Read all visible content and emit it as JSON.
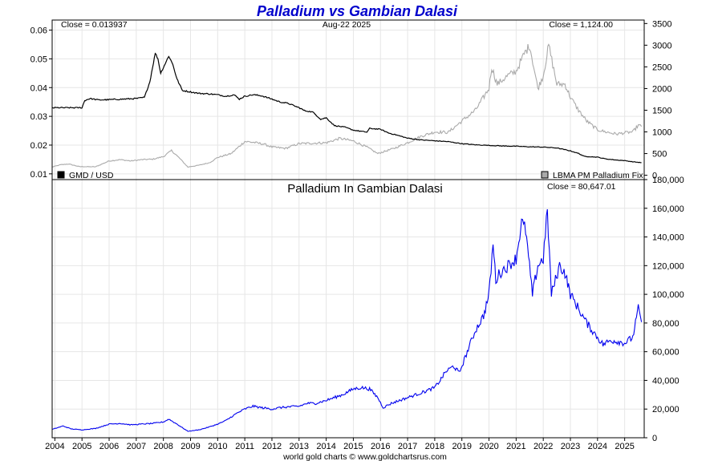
{
  "colors": {
    "title": "#0000cc",
    "gmd_line": "#000000",
    "palladium_line": "#aaaaaa",
    "gmd_palladium_line": "#0000ee",
    "grid": "#e6e6e6"
  },
  "chart_data": [
    {
      "type": "line",
      "title": "Palladium vs Gambian Dalasi",
      "header_left": "Close = 0.013937",
      "header_center": "Aug-22  2025",
      "header_right": "Close = 1,124.00",
      "grid": true,
      "x_ticks": [
        "2004",
        "2005",
        "2006",
        "2007",
        "2008",
        "2009",
        "2010",
        "2011",
        "2012",
        "2013",
        "2014",
        "2015",
        "2016",
        "2017",
        "2018",
        "2019",
        "2020",
        "2021",
        "2022",
        "2023",
        "2024",
        "2025"
      ],
      "xlim": [
        2003.9,
        2025.72
      ],
      "left_axis": {
        "ticks": [
          "0.01",
          "0.02",
          "0.03",
          "0.04",
          "0.05",
          "0.06"
        ],
        "ylim": [
          0.008,
          0.0635
        ]
      },
      "right_axis": {
        "ticks": [
          "0",
          "500",
          "1000",
          "1500",
          "2000",
          "2500",
          "3000",
          "3500"
        ],
        "ylim": [
          -100,
          3580
        ]
      },
      "series": [
        {
          "name": "GMD / USD",
          "axis": "left",
          "legend_position": "bottom-left",
          "x": [
            2003.9,
            2004.5,
            2005.0,
            2005.1,
            2005.3,
            2005.6,
            2006.0,
            2006.5,
            2007.0,
            2007.3,
            2007.5,
            2007.7,
            2007.8,
            2007.9,
            2008.0,
            2008.2,
            2008.35,
            2008.5,
            2008.7,
            2009.0,
            2009.3,
            2009.7,
            2010.0,
            2010.3,
            2010.6,
            2010.8,
            2011.0,
            2011.3,
            2011.6,
            2012.0,
            2012.3,
            2012.6,
            2013.0,
            2013.2,
            2013.5,
            2013.8,
            2014.0,
            2014.3,
            2014.7,
            2015.0,
            2015.5,
            2015.6,
            2016.0,
            2016.3,
            2016.6,
            2017.0,
            2017.5,
            2018.0,
            2018.5,
            2019.0,
            2019.5,
            2020.0,
            2020.5,
            2021.0,
            2021.5,
            2022.0,
            2022.5,
            2022.8,
            2023.0,
            2023.3,
            2023.5,
            2024.0,
            2024.3,
            2024.7,
            2025.0,
            2025.3,
            2025.62
          ],
          "y": [
            0.033,
            0.033,
            0.033,
            0.0355,
            0.0362,
            0.0357,
            0.0358,
            0.036,
            0.0362,
            0.0366,
            0.042,
            0.052,
            0.05,
            0.045,
            0.047,
            0.051,
            0.048,
            0.043,
            0.039,
            0.0385,
            0.038,
            0.0378,
            0.0375,
            0.037,
            0.0375,
            0.036,
            0.037,
            0.0375,
            0.0372,
            0.036,
            0.035,
            0.0345,
            0.033,
            0.032,
            0.0315,
            0.029,
            0.0295,
            0.0268,
            0.0262,
            0.0252,
            0.0245,
            0.0258,
            0.0255,
            0.0242,
            0.0235,
            0.0224,
            0.0218,
            0.0215,
            0.0212,
            0.0205,
            0.0201,
            0.0199,
            0.0197,
            0.0196,
            0.0194,
            0.0193,
            0.019,
            0.0184,
            0.018,
            0.0171,
            0.0161,
            0.0158,
            0.0152,
            0.0148,
            0.0146,
            0.0142,
            0.0139
          ]
        },
        {
          "name": "LBMA PM Palladium Fix",
          "axis": "right",
          "legend_position": "bottom-right",
          "x": [
            2003.9,
            2004.2,
            2004.5,
            2004.9,
            2005.5,
            2006.0,
            2006.4,
            2006.8,
            2007.2,
            2007.6,
            2008.0,
            2008.3,
            2008.6,
            2008.9,
            2009.3,
            2009.7,
            2010.0,
            2010.5,
            2011.0,
            2011.3,
            2011.7,
            2012.0,
            2012.5,
            2013.0,
            2013.5,
            2014.0,
            2014.5,
            2015.0,
            2015.5,
            2015.9,
            2016.5,
            2017.0,
            2017.5,
            2018.0,
            2018.5,
            2019.0,
            2019.5,
            2020.0,
            2020.1,
            2020.3,
            2020.7,
            2021.0,
            2021.3,
            2021.5,
            2021.8,
            2022.0,
            2022.2,
            2022.5,
            2022.8,
            2023.0,
            2023.3,
            2023.6,
            2024.0,
            2024.3,
            2024.7,
            2025.0,
            2025.3,
            2025.5,
            2025.62
          ],
          "y": [
            190,
            240,
            260,
            200,
            195,
            330,
            360,
            330,
            360,
            370,
            430,
            570,
            390,
            190,
            230,
            290,
            410,
            500,
            780,
            760,
            720,
            650,
            620,
            730,
            740,
            750,
            850,
            790,
            650,
            500,
            620,
            750,
            900,
            1000,
            990,
            1250,
            1500,
            2000,
            2500,
            2100,
            2300,
            2400,
            2800,
            3000,
            2000,
            2300,
            3000,
            2100,
            2100,
            1800,
            1500,
            1250,
            1050,
            1000,
            950,
            980,
            1000,
            1150,
            1124
          ]
        },
        {
          "name": "Palladium In Gambian Dalasi",
          "header_right": "Close = 80,647.01",
          "axis": "bottom-right",
          "ticks": [
            "0",
            "20,000",
            "40,000",
            "60,000",
            "80,000",
            "100,000",
            "120,000",
            "140,000",
            "160,000",
            "180,000"
          ],
          "ylim": [
            0,
            180000
          ],
          "x": [
            2003.9,
            2004.3,
            2004.6,
            2005.0,
            2005.5,
            2006.0,
            2006.4,
            2006.8,
            2007.2,
            2007.6,
            2008.0,
            2008.2,
            2008.5,
            2008.7,
            2008.9,
            2009.3,
            2009.6,
            2010.0,
            2010.3,
            2010.7,
            2011.0,
            2011.3,
            2011.6,
            2012.0,
            2012.3,
            2012.6,
            2013.0,
            2013.3,
            2013.6,
            2014.0,
            2014.3,
            2014.6,
            2015.0,
            2015.3,
            2015.6,
            2015.9,
            2016.1,
            2016.4,
            2016.7,
            2017.0,
            2017.3,
            2017.6,
            2018.0,
            2018.2,
            2018.4,
            2018.7,
            2018.9,
            2019.2,
            2019.5,
            2019.8,
            2020.0,
            2020.15,
            2020.25,
            2020.4,
            2020.7,
            2021.0,
            2021.2,
            2021.35,
            2021.6,
            2021.8,
            2022.0,
            2022.15,
            2022.3,
            2022.6,
            2022.8,
            2023.0,
            2023.3,
            2023.6,
            2024.0,
            2024.2,
            2024.5,
            2024.8,
            2025.0,
            2025.3,
            2025.5,
            2025.62
          ],
          "y": [
            5800,
            8200,
            6200,
            5500,
            6500,
            9500,
            10000,
            9000,
            9500,
            10000,
            11000,
            13000,
            9500,
            7000,
            4500,
            5500,
            7000,
            9500,
            12000,
            17000,
            20000,
            22000,
            21000,
            20000,
            21000,
            21500,
            22000,
            24000,
            24000,
            26000,
            28000,
            30000,
            34000,
            35000,
            34000,
            28000,
            21000,
            24000,
            26000,
            28000,
            30000,
            32000,
            35000,
            40000,
            46000,
            50000,
            45000,
            60000,
            75000,
            85000,
            100000,
            135000,
            110000,
            115000,
            120000,
            125000,
            150000,
            145000,
            100000,
            120000,
            125000,
            158000,
            100000,
            120000,
            115000,
            100000,
            90000,
            80000,
            70000,
            65000,
            68000,
            67000,
            66000,
            70000,
            90000,
            80647
          ]
        }
      ]
    }
  ],
  "footer": "world gold charts © www.goldchartsrus.com"
}
